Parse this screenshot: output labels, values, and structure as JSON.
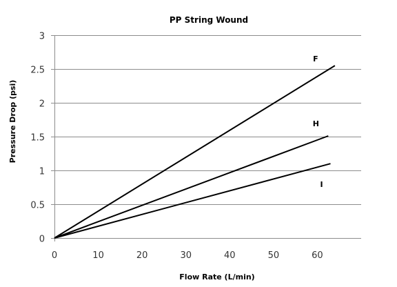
{
  "chart_data": {
    "type": "line",
    "title": "PP String Wound",
    "xlabel": "Flow Rate (L/min)",
    "ylabel": "Pressure Drop (psi)",
    "xlim": [
      0,
      70
    ],
    "ylim": [
      0,
      3
    ],
    "x_ticks": [
      "0",
      "10",
      "20",
      "30",
      "40",
      "50",
      "60"
    ],
    "y_ticks": [
      "0",
      "0.5",
      "1",
      "1.5",
      "2",
      "2.5",
      "3"
    ],
    "grid": true,
    "series": [
      {
        "name": "F",
        "x": [
          0,
          64
        ],
        "values": [
          0,
          2.55
        ],
        "color": "#000000"
      },
      {
        "name": "H",
        "x": [
          0,
          62.5
        ],
        "values": [
          0,
          1.51
        ],
        "color": "#000000"
      },
      {
        "name": "I",
        "x": [
          0,
          63
        ],
        "values": [
          0,
          1.1
        ],
        "color": "#000000"
      }
    ]
  }
}
